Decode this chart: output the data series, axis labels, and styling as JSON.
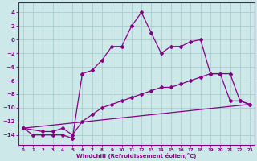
{
  "xlabel": "Windchill (Refroidissement éolien,°C)",
  "bg_color": "#cce8e8",
  "grid_color": "#aacccc",
  "line_color": "#880088",
  "xlim": [
    -0.5,
    23.5
  ],
  "ylim": [
    -15.5,
    5.5
  ],
  "xticks": [
    0,
    1,
    2,
    3,
    4,
    5,
    6,
    7,
    8,
    9,
    10,
    11,
    12,
    13,
    14,
    15,
    16,
    17,
    18,
    19,
    20,
    21,
    22,
    23
  ],
  "yticks": [
    -14,
    -12,
    -10,
    -8,
    -6,
    -4,
    -2,
    0,
    2,
    4
  ],
  "series1_x": [
    0,
    1,
    2,
    3,
    4,
    5,
    6,
    7,
    8,
    9,
    10,
    11,
    12,
    13,
    14,
    15,
    16,
    17,
    18,
    19,
    20,
    21,
    22,
    23
  ],
  "series1_y": [
    -13,
    -14,
    -14,
    -14,
    -14,
    -14.5,
    -5,
    -4.5,
    -3,
    -1,
    -1,
    2,
    4,
    1,
    -2,
    -1,
    -1,
    -0.3,
    0,
    -5,
    -5,
    -9,
    -9,
    -9.5
  ],
  "series2_x": [
    0,
    2,
    3,
    4,
    5,
    6,
    7,
    8,
    9,
    10,
    11,
    12,
    13,
    14,
    15,
    16,
    17,
    18,
    19,
    20,
    21,
    22,
    23
  ],
  "series2_y": [
    -13,
    -13.5,
    -13.5,
    -13,
    -14,
    -12,
    -11,
    -10,
    -9.5,
    -9,
    -8.5,
    -8,
    -7.5,
    -7,
    -7,
    -6.5,
    -6,
    -5.5,
    -5,
    -5,
    -5,
    -9,
    -9.5
  ],
  "series3_x": [
    0,
    23
  ],
  "series3_y": [
    -13,
    -9.5
  ]
}
